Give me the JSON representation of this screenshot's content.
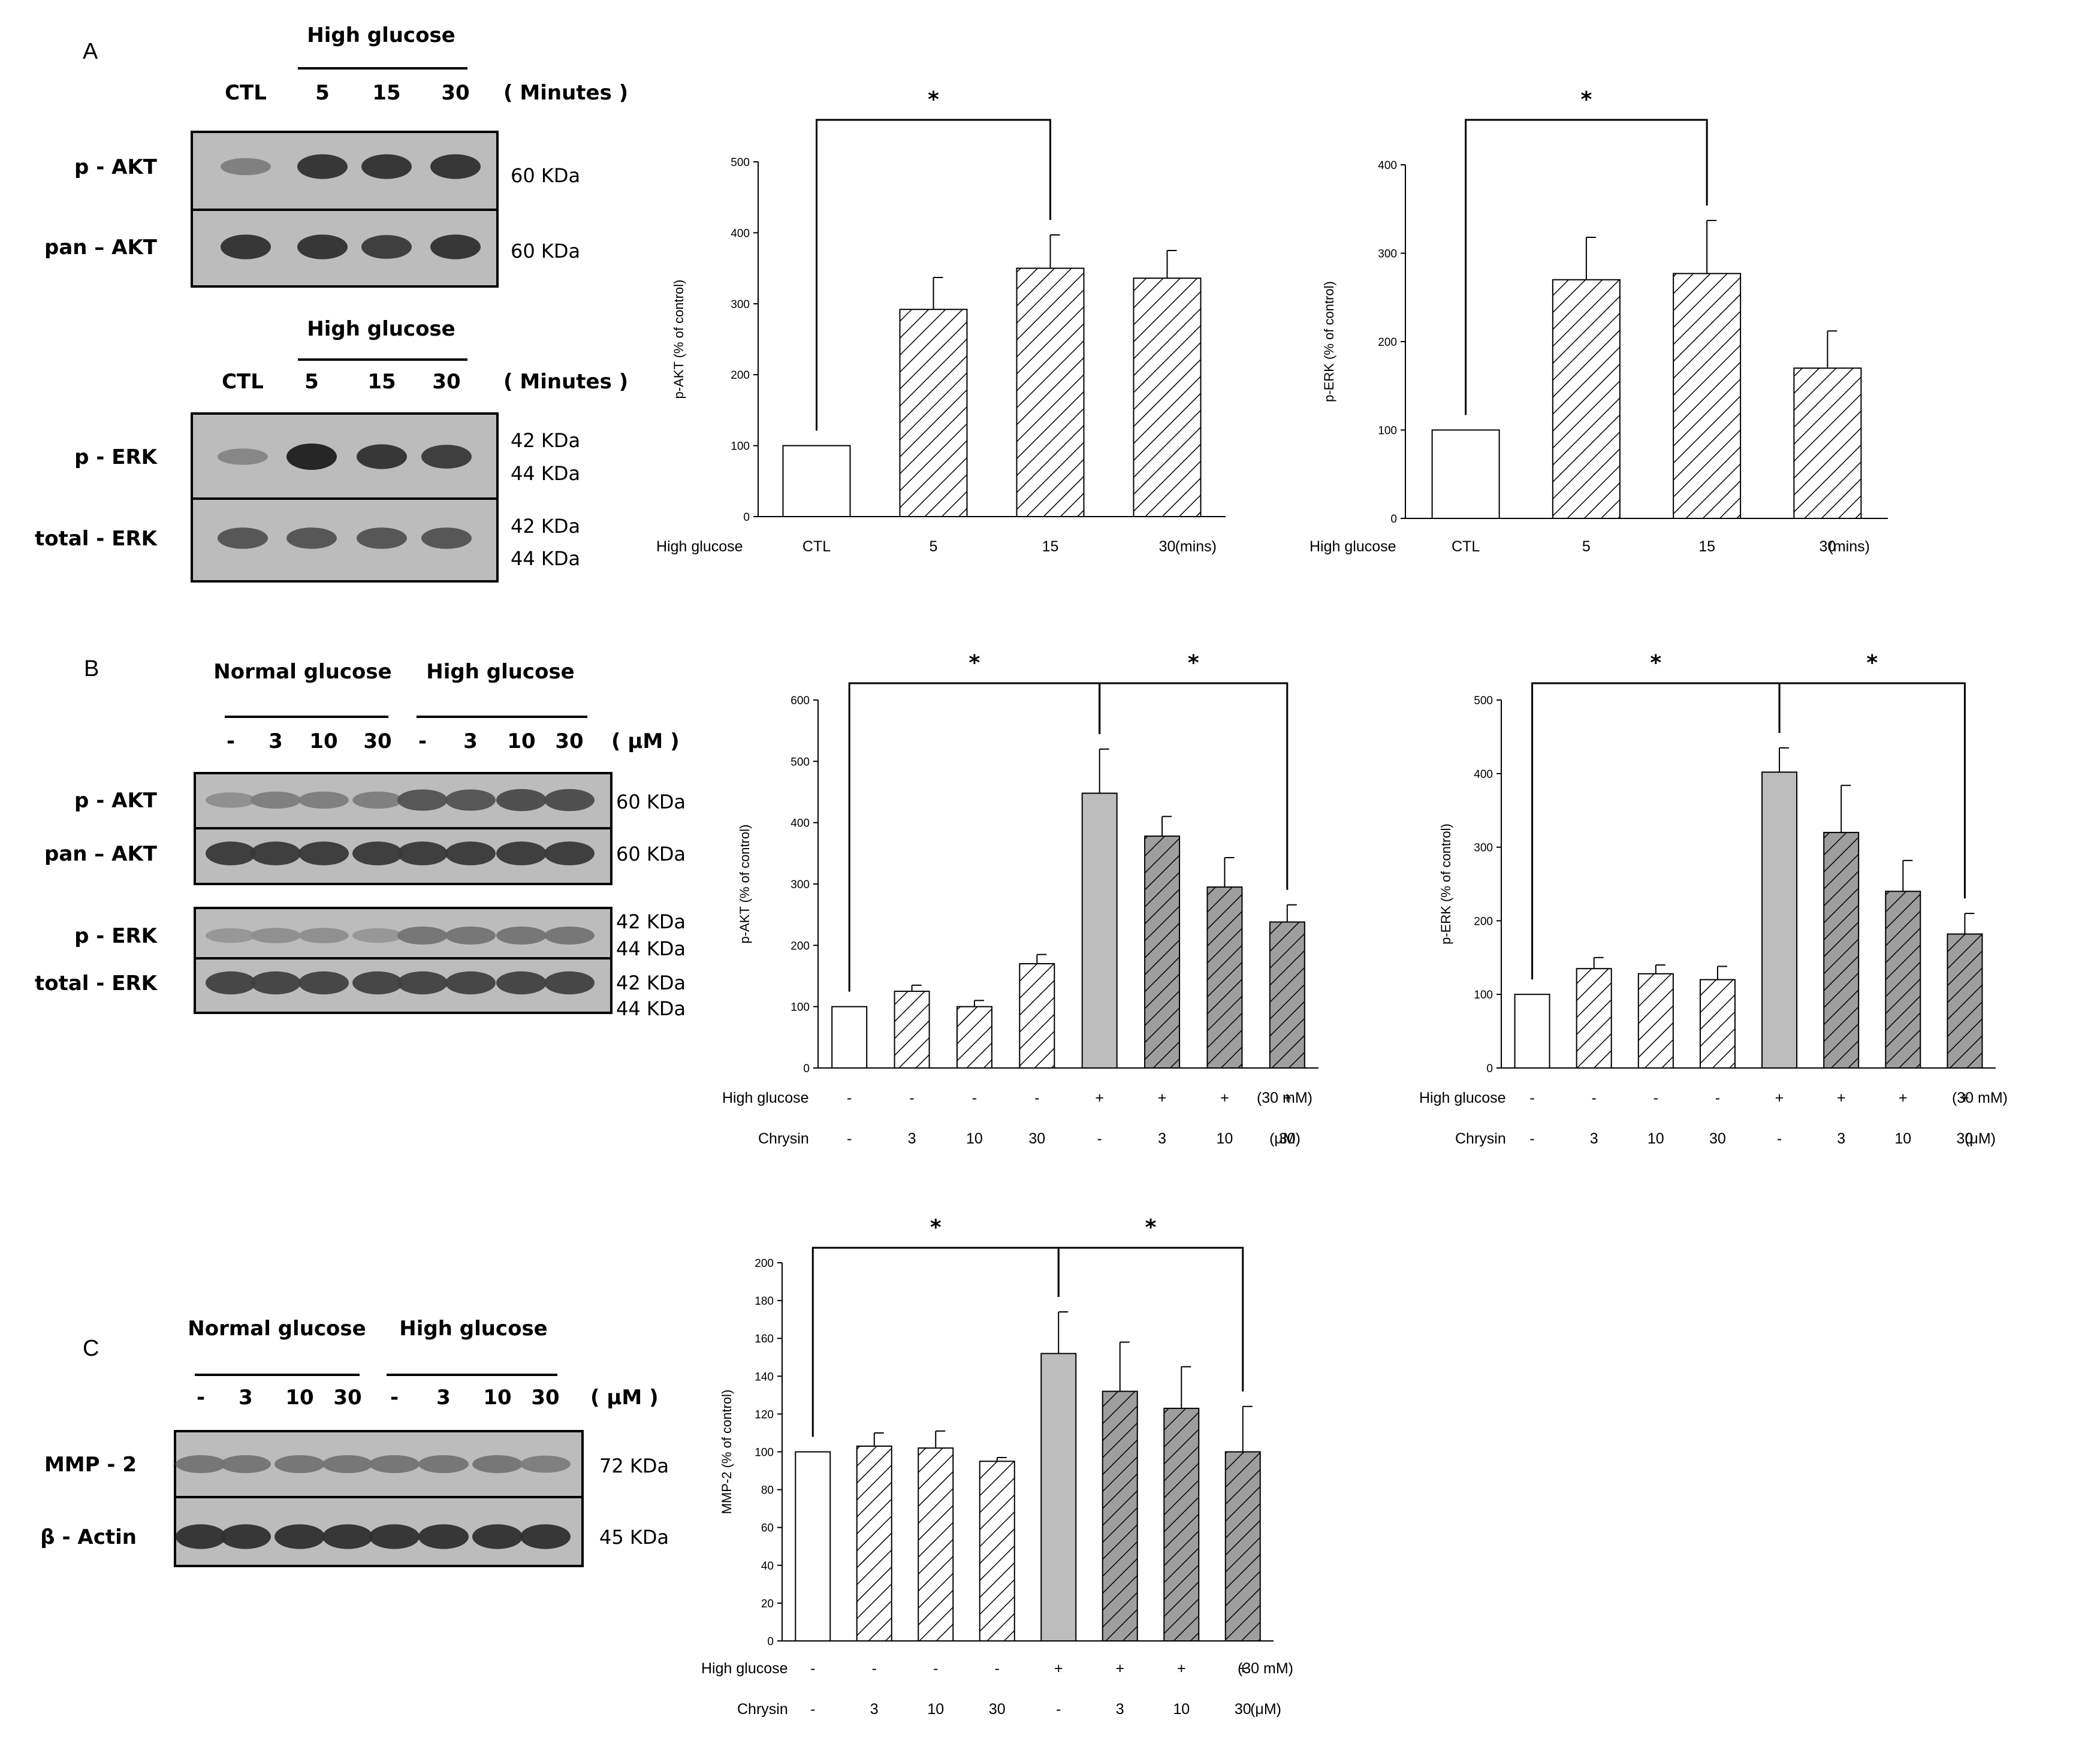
{
  "panels": {
    "A": "A",
    "B": "B",
    "C": "C"
  },
  "colors": {
    "open": "#ffffff",
    "light_hatch": "#ffffff",
    "gray_solid": "#bdbdbd",
    "dark_hatch_bg": "#9e9e9e",
    "line": "#000000",
    "blot_bg": "#bcbcbc"
  },
  "blots": [
    {
      "id": "A1",
      "header": "High glucose",
      "lanes": [
        "CTL",
        "5",
        "15",
        "30"
      ],
      "unit": "( Minutes )",
      "rows": [
        {
          "label": "p - AKT",
          "kda": [
            "60 KDa"
          ]
        },
        {
          "label": "pan – AKT",
          "kda": [
            "60 KDa"
          ]
        }
      ]
    },
    {
      "id": "A2",
      "header": "High glucose",
      "lanes": [
        "CTL",
        "5",
        "15",
        "30"
      ],
      "unit": "( Minutes )",
      "rows": [
        {
          "label": "p - ERK",
          "kda": [
            "42 KDa",
            "44 KDa"
          ]
        },
        {
          "label": "total - ERK",
          "kda": [
            "42 KDa",
            "44 KDa"
          ]
        }
      ]
    },
    {
      "id": "B",
      "headers": [
        "Normal glucose",
        "High glucose"
      ],
      "lanes": [
        "-",
        "3",
        "10",
        "30",
        "-",
        "3",
        "10",
        "30"
      ],
      "unit": "( μM )",
      "rows": [
        {
          "label": "p - AKT",
          "kda": [
            "60 KDa"
          ]
        },
        {
          "label": "pan – AKT",
          "kda": [
            "60 KDa"
          ]
        },
        {
          "label": "p - ERK",
          "kda": [
            "42 KDa",
            "44 KDa"
          ]
        },
        {
          "label": "total - ERK",
          "kda": [
            "42 KDa",
            "44 KDa"
          ]
        }
      ]
    },
    {
      "id": "C",
      "headers": [
        "Normal glucose",
        "High glucose"
      ],
      "lanes": [
        "-",
        "3",
        "10",
        "30",
        "-",
        "3",
        "10",
        "30"
      ],
      "unit": "( μM )",
      "rows": [
        {
          "label": "MMP - 2",
          "kda": [
            "72 KDa"
          ]
        },
        {
          "label": "β - Actin",
          "kda": [
            "45 KDa"
          ]
        }
      ]
    }
  ],
  "chart_data": [
    {
      "id": "A_pAKT",
      "type": "bar",
      "ylabel": "p-AKT (% of control)",
      "ylim": [
        0,
        500
      ],
      "yticks": [
        0,
        100,
        200,
        300,
        400,
        500
      ],
      "row_label": "High glucose",
      "categories": [
        "CTL",
        "5",
        "15",
        "30"
      ],
      "unit": "(mins)",
      "values": [
        100,
        292,
        350,
        336
      ],
      "errors": [
        0,
        45,
        47,
        39
      ],
      "fills": [
        "open",
        "hatch",
        "hatch",
        "hatch"
      ],
      "significance": [
        {
          "from": 0,
          "to": 2,
          "label": "*"
        }
      ]
    },
    {
      "id": "A_pERK",
      "type": "bar",
      "ylabel": "p-ERK (% of control)",
      "ylim": [
        0,
        400
      ],
      "yticks": [
        0,
        100,
        200,
        300,
        400
      ],
      "row_label": "High glucose",
      "categories": [
        "CTL",
        "5",
        "15",
        "30"
      ],
      "unit": "(mins)",
      "values": [
        100,
        270,
        277,
        170
      ],
      "errors": [
        0,
        48,
        60,
        42
      ],
      "fills": [
        "open",
        "hatch",
        "hatch",
        "hatch"
      ],
      "significance": [
        {
          "from": 0,
          "to": 2,
          "label": "*"
        }
      ]
    },
    {
      "id": "B_pAKT",
      "type": "bar",
      "ylabel": "p-AKT (% of control)",
      "ylim": [
        0,
        600
      ],
      "yticks": [
        0,
        100,
        200,
        300,
        400,
        500,
        600
      ],
      "row_label": "High glucose",
      "categories": [
        "-",
        "-",
        "-",
        "-",
        "+",
        "+",
        "+",
        "+"
      ],
      "unit": "(30 mM)",
      "row2_label": "Chrysin",
      "categories2": [
        "-",
        "3",
        "10",
        "30",
        "-",
        "3",
        "10",
        "30"
      ],
      "unit2": "(μM)",
      "values": [
        100,
        125,
        100,
        170,
        448,
        378,
        295,
        238
      ],
      "errors": [
        0,
        10,
        10,
        15,
        72,
        32,
        48,
        28
      ],
      "fills": [
        "open",
        "hatch",
        "hatch",
        "hatch",
        "gray",
        "darkhatch",
        "darkhatch",
        "darkhatch"
      ],
      "significance": [
        {
          "from": 0,
          "to": 4,
          "label": "*"
        },
        {
          "from": 4,
          "to": 7,
          "label": "*"
        }
      ]
    },
    {
      "id": "B_pERK",
      "type": "bar",
      "ylabel": "p-ERK (% of control)",
      "ylim": [
        0,
        500
      ],
      "yticks": [
        0,
        100,
        200,
        300,
        400,
        500
      ],
      "row_label": "High glucose",
      "categories": [
        "-",
        "-",
        "-",
        "-",
        "+",
        "+",
        "+",
        "+"
      ],
      "unit": "(30 mM)",
      "row2_label": "Chrysin",
      "categories2": [
        "-",
        "3",
        "10",
        "30",
        "-",
        "3",
        "10",
        "30"
      ],
      "unit2": "(μM)",
      "values": [
        100,
        135,
        128,
        120,
        402,
        320,
        240,
        182
      ],
      "errors": [
        0,
        15,
        12,
        18,
        33,
        64,
        42,
        28
      ],
      "fills": [
        "open",
        "hatch",
        "hatch",
        "hatch",
        "gray",
        "darkhatch",
        "darkhatch",
        "darkhatch"
      ],
      "significance": [
        {
          "from": 0,
          "to": 4,
          "label": "*"
        },
        {
          "from": 4,
          "to": 7,
          "label": "*"
        }
      ]
    },
    {
      "id": "C_MMP2",
      "type": "bar",
      "ylabel": "MMP-2 (% of control)",
      "ylim": [
        0,
        200
      ],
      "yticks": [
        0,
        20,
        40,
        60,
        80,
        100,
        120,
        140,
        160,
        180,
        200
      ],
      "row_label": "High glucose",
      "categories": [
        "-",
        "-",
        "-",
        "-",
        "+",
        "+",
        "+",
        "+"
      ],
      "unit": "(30 mM)",
      "row2_label": "Chrysin",
      "categories2": [
        "-",
        "3",
        "10",
        "30",
        "-",
        "3",
        "10",
        "30"
      ],
      "unit2": "(μM)",
      "values": [
        100,
        103,
        102,
        95,
        152,
        132,
        123,
        100
      ],
      "errors": [
        0,
        7,
        9,
        2,
        22,
        26,
        22,
        24
      ],
      "fills": [
        "open",
        "hatch",
        "hatch",
        "hatch",
        "gray",
        "darkhatch",
        "darkhatch",
        "darkhatch"
      ],
      "significance": [
        {
          "from": 0,
          "to": 4,
          "label": "*"
        },
        {
          "from": 4,
          "to": 7,
          "label": "*"
        }
      ]
    }
  ]
}
